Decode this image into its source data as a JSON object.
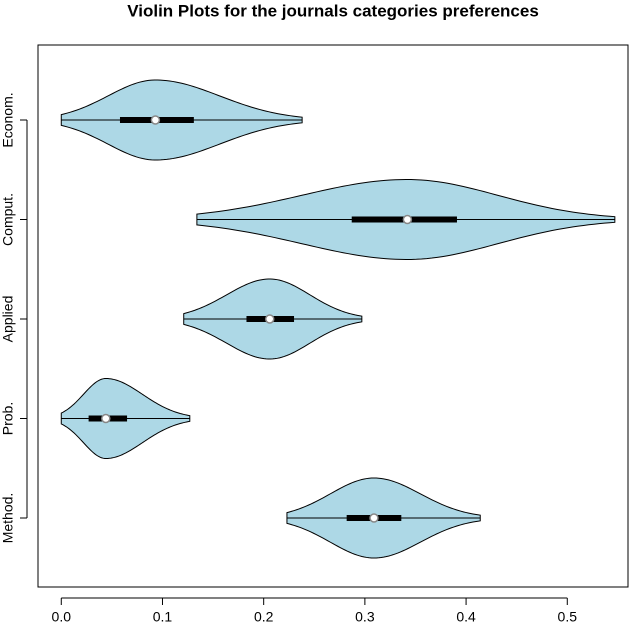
{
  "chart_data": {
    "type": "violin",
    "title": "Violin Plots for the journals categories preferences",
    "categories": [
      "Econom.",
      "Comput.",
      "Applied",
      "Prob.",
      "Method."
    ],
    "min": [
      0.0,
      0.134,
      0.121,
      0.0,
      0.223
    ],
    "q1": [
      0.058,
      0.287,
      0.183,
      0.027,
      0.282
    ],
    "median": [
      0.093,
      0.342,
      0.206,
      0.044,
      0.309
    ],
    "q3": [
      0.131,
      0.391,
      0.23,
      0.065,
      0.336
    ],
    "max": [
      0.238,
      0.547,
      0.297,
      0.127,
      0.414
    ],
    "color": "#add8e6",
    "xlim": [
      -0.023,
      0.56
    ],
    "xticks": [
      {
        "value": 0,
        "label": "0.0"
      },
      0.1,
      0.2,
      0.3,
      0.4,
      0.5
    ]
  }
}
